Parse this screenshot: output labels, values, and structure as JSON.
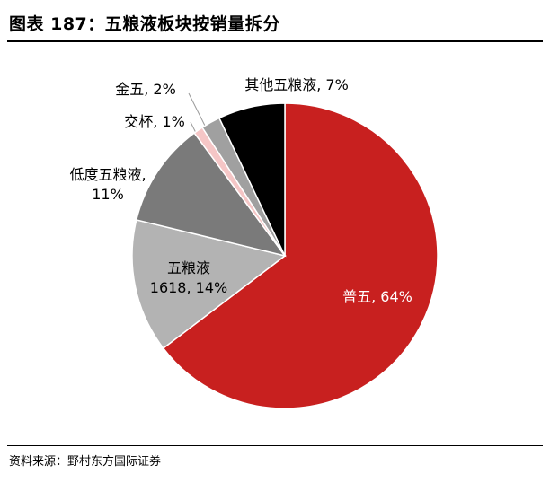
{
  "title": "图表 187：五粮液板块按销量拆分",
  "source": "资料来源：野村东方国际证券",
  "chart_data": {
    "type": "pie",
    "slices": [
      {
        "label": "普五, 64%",
        "lines": [
          "普五, 64%"
        ],
        "value": 64,
        "color": "#c8201f"
      },
      {
        "label": "五粮液 1618, 14%",
        "lines": [
          "五粮液",
          "1618, 14%"
        ],
        "value": 14,
        "color": "#b3b3b3"
      },
      {
        "label": "低度五粮液, 11%",
        "lines": [
          "低度五粮液,",
          "11%"
        ],
        "value": 11,
        "color": "#7a7a7a"
      },
      {
        "label": "交杯, 1%",
        "lines": [
          "交杯, 1%"
        ],
        "value": 1,
        "color": "#f5c6c6"
      },
      {
        "label": "金五, 2%",
        "lines": [
          "金五, 2%"
        ],
        "value": 2,
        "color": "#a0a0a0"
      },
      {
        "label": "其他五粮液, 7%",
        "lines": [
          "其他五粮液, 7%"
        ],
        "value": 7,
        "color": "#000000"
      }
    ]
  }
}
